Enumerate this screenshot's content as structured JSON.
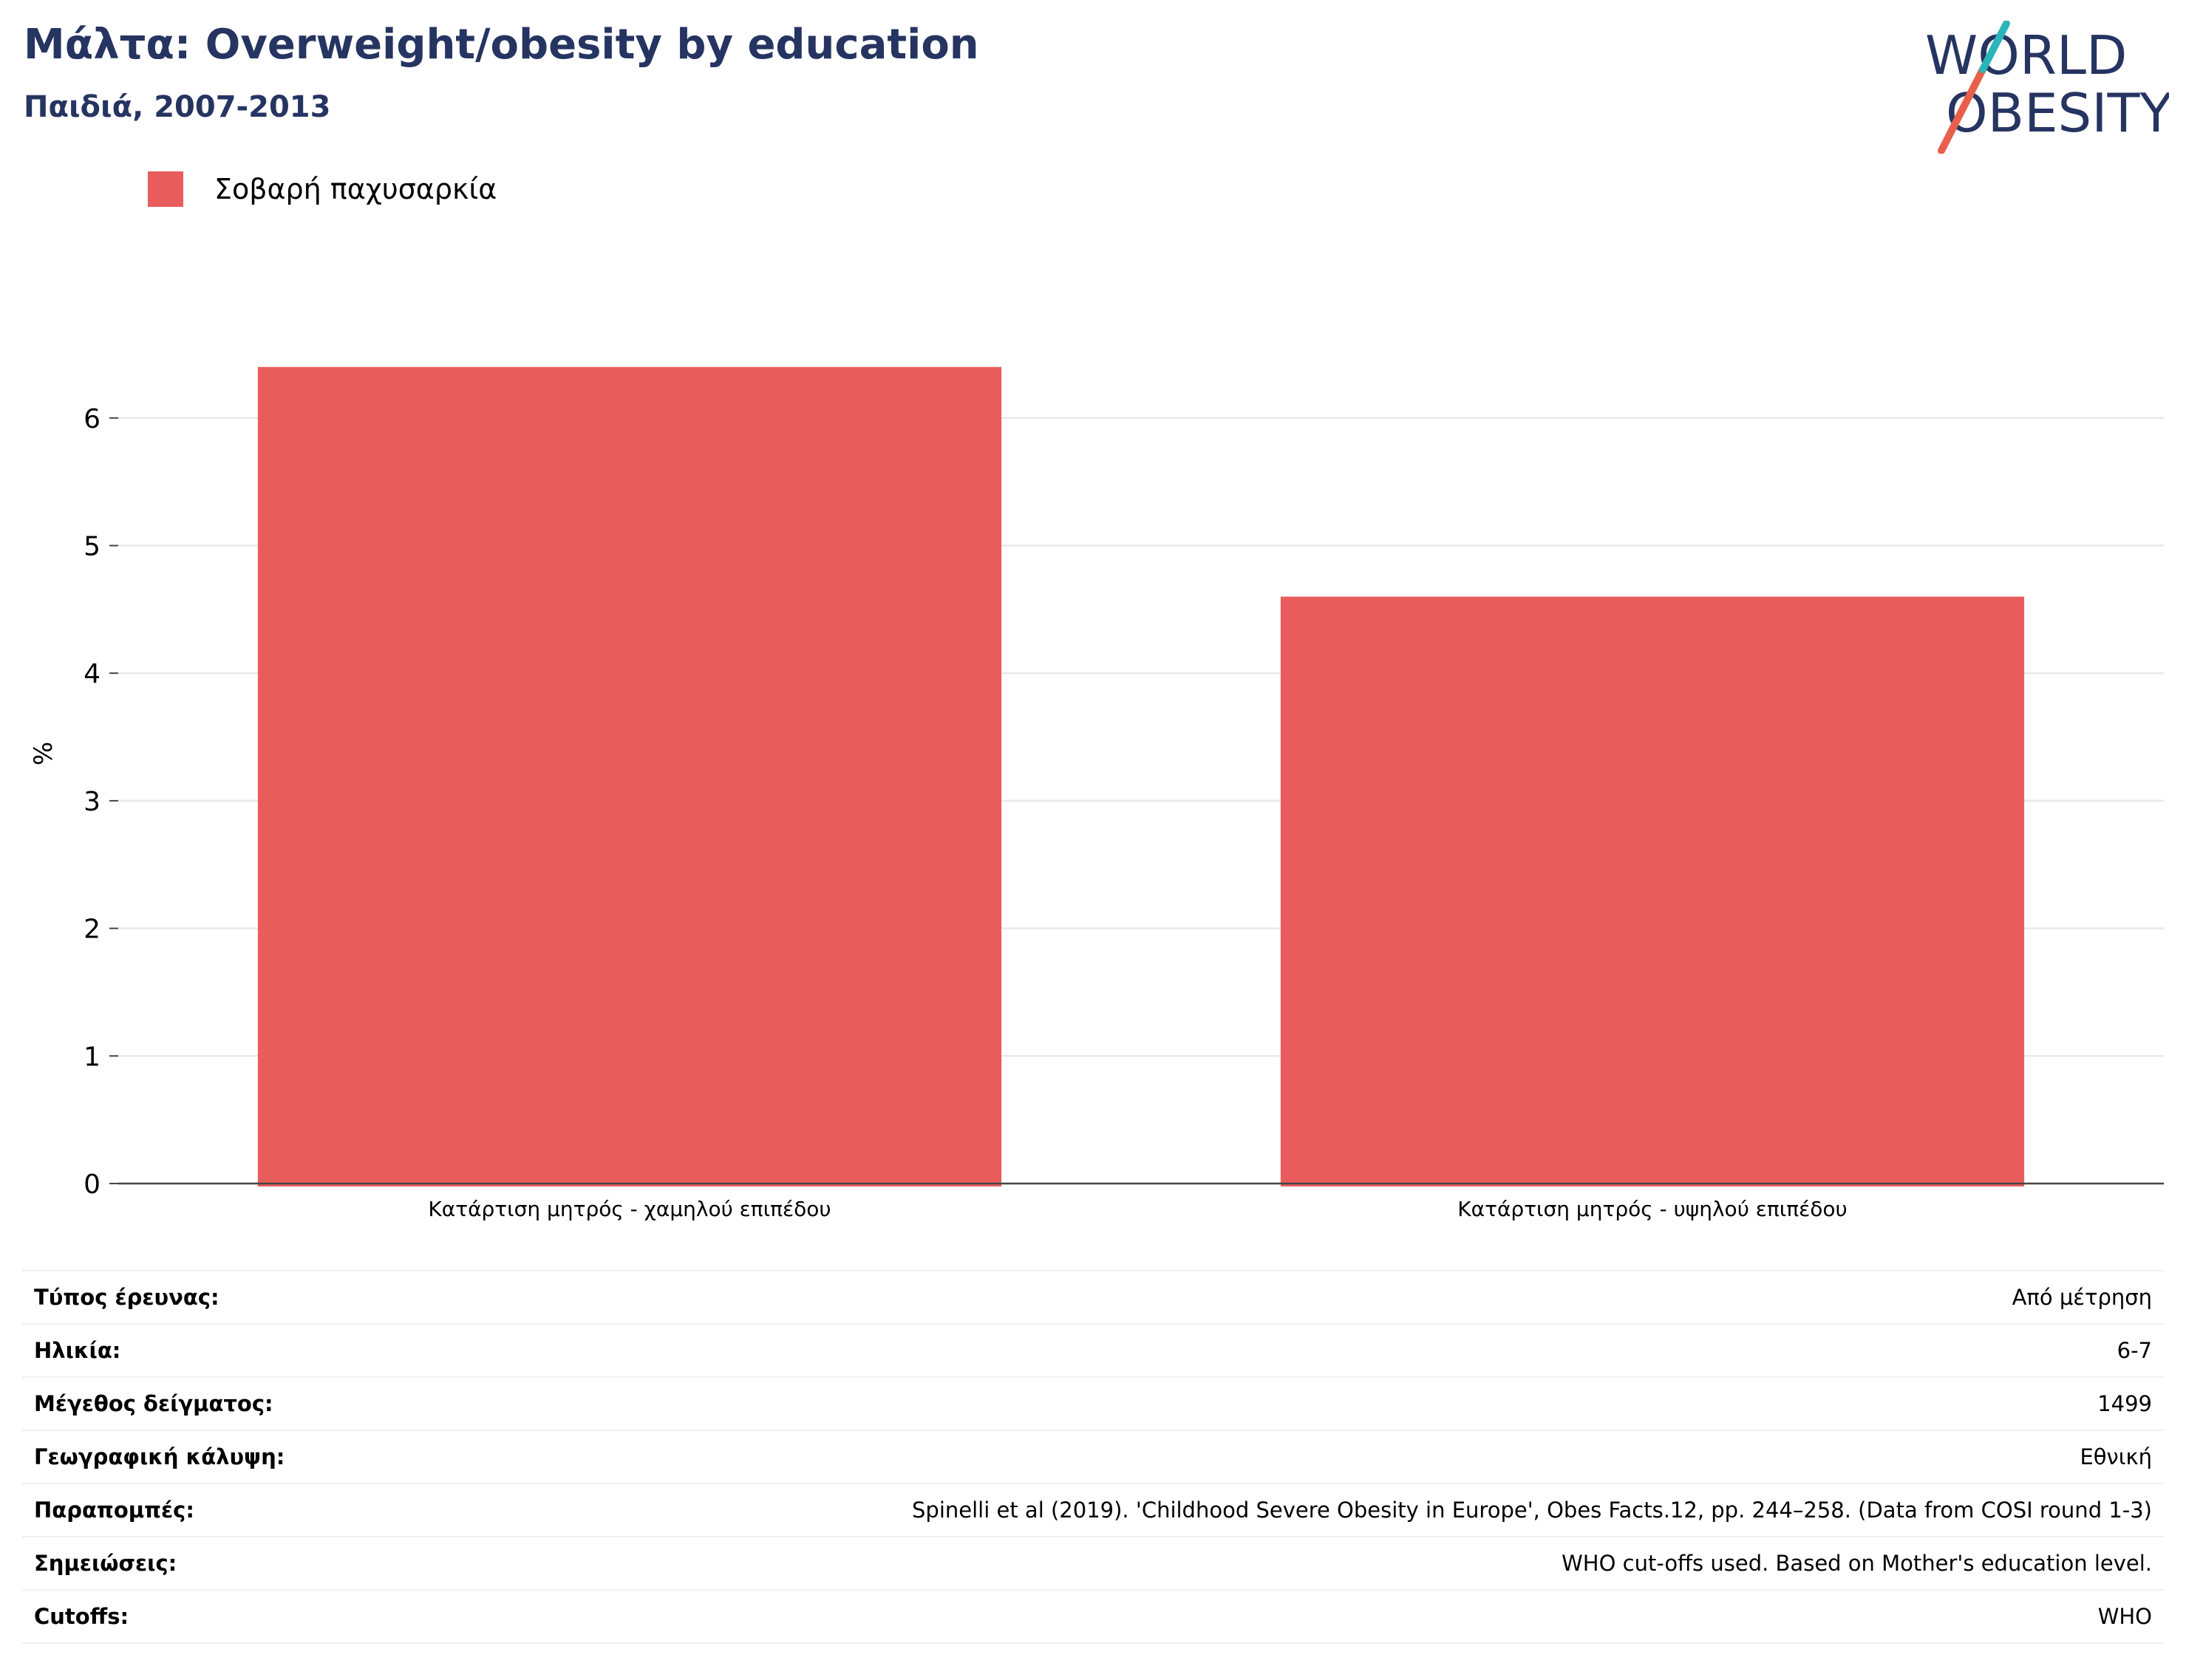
{
  "header": {
    "title": "Μάλτα: Overweight/obesity by education",
    "subtitle": "Παιδιά, 2007-2013"
  },
  "logo": {
    "line1": "WORLD",
    "line2": "OBESITY",
    "colors": {
      "text": "#263461",
      "slash_orange": "#e8604c",
      "slash_teal": "#2bb5b8"
    }
  },
  "chart_data": {
    "type": "bar",
    "categories": [
      "Κατάρτιση μητρός - χαμηλού επιπέδου",
      "Κατάρτιση μητρός - υψηλού επιπέδου"
    ],
    "series": [
      {
        "name": "Σοβαρή παχυσαρκία",
        "values": [
          6.4,
          4.6
        ],
        "color": "#e95c5c"
      }
    ],
    "ylabel": "%",
    "ylim": [
      0,
      6.4
    ],
    "yticks": [
      0,
      1,
      2,
      3,
      4,
      5,
      6
    ],
    "grid": true,
    "legend": "top-left"
  },
  "details": [
    {
      "label": "Τύπος έρευνας:",
      "value": "Από μέτρηση"
    },
    {
      "label": "Ηλικία:",
      "value": "6-7"
    },
    {
      "label": "Μέγεθος δείγματος:",
      "value": "1499"
    },
    {
      "label": "Γεωγραφική κάλυψη:",
      "value": "Εθνική"
    },
    {
      "label": "Παραπομπές:",
      "value": "Spinelli et al (2019). 'Childhood Severe Obesity in Europe', Obes Facts.12, pp. 244–258. (Data from COSI round 1-3)"
    },
    {
      "label": "Σημειώσεις:",
      "value": "WHO cut-offs used. Based on Mother's education level."
    },
    {
      "label": "Cutoffs:",
      "value": "WHO"
    }
  ]
}
